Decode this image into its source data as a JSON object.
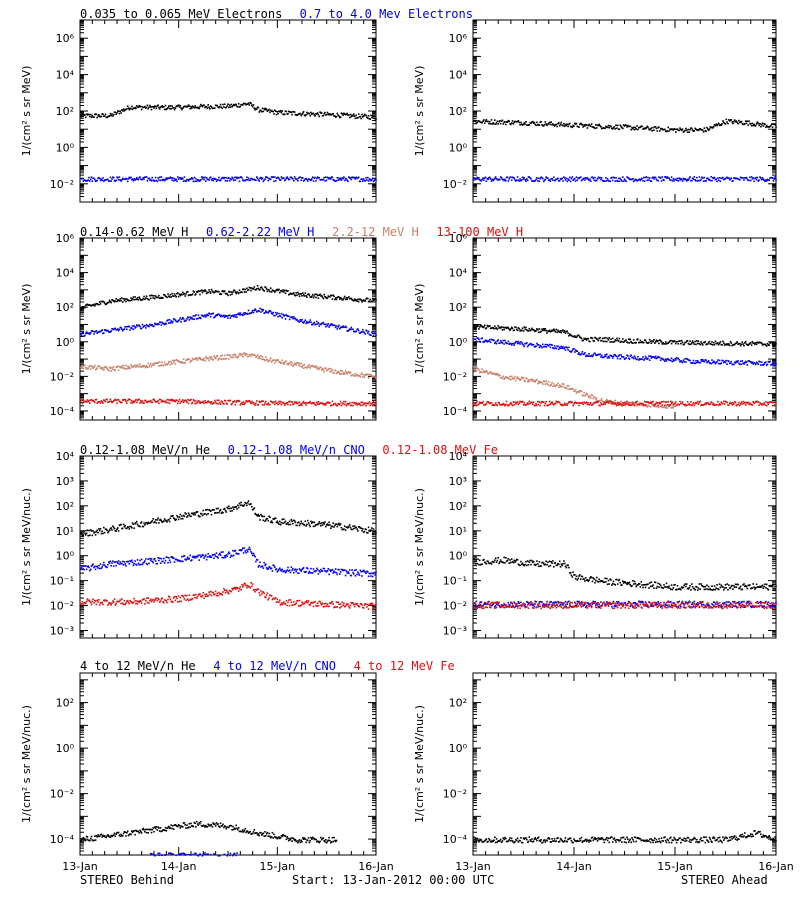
{
  "colors": {
    "black": "#000000",
    "blue": "#0000ee",
    "tan": "#c8826a",
    "red": "#dd1111"
  },
  "footer": {
    "left": "STEREO Behind",
    "center": "Start: 13-Jan-2012 00:00 UTC",
    "right": "STEREO Ahead"
  },
  "x_ticks": [
    "13-Jan",
    "14-Jan",
    "15-Jan",
    "16-Jan"
  ],
  "chart_data": [
    {
      "type": "scatter",
      "ylog": true,
      "ylim": [
        0.001,
        10000000
      ],
      "ylabel": "1/(cm² s sr MeV)",
      "ytick_exps": [
        -2,
        0,
        2,
        4,
        6
      ],
      "xlim": [
        0,
        3
      ],
      "legend": [
        {
          "name": "0.035 to 0.065 MeV Electrons",
          "color": "#000000"
        },
        {
          "name": "0.7 to 4.0 Mev Electrons",
          "color": "#0000ee"
        }
      ],
      "series": [
        {
          "name": "0.035 to 0.065 MeV Electrons",
          "color": "#000000",
          "x": [
            0,
            0.3,
            0.5,
            0.9,
            1.2,
            1.5,
            1.7,
            1.8,
            2.0,
            2.5,
            3.0
          ],
          "y": [
            60,
            60,
            180,
            170,
            190,
            200,
            280,
            130,
            90,
            70,
            50
          ]
        },
        {
          "name": "0.7 to 4.0 Mev Electrons",
          "color": "#0000ee",
          "x": [
            0,
            1.0,
            2.0,
            3.0
          ],
          "y": [
            0.02,
            0.02,
            0.02,
            0.02
          ]
        }
      ]
    },
    {
      "type": "scatter",
      "ylog": true,
      "ylim": [
        0.001,
        10000000
      ],
      "ylabel": "1/(cm² s sr MeV)",
      "ytick_exps": [
        -2,
        0,
        2,
        4,
        6
      ],
      "xlim": [
        0,
        3
      ],
      "legend": [],
      "series": [
        {
          "name": "0.035 to 0.065 MeV Electrons",
          "color": "#000000",
          "x": [
            0,
            0.5,
            1.0,
            1.5,
            2.0,
            2.3,
            2.5,
            2.7,
            3.0
          ],
          "y": [
            30,
            25,
            18,
            14,
            10,
            10,
            30,
            25,
            15
          ]
        },
        {
          "name": "0.7 to 4.0 Mev Electrons",
          "color": "#0000ee",
          "x": [
            0,
            1.0,
            2.0,
            3.0
          ],
          "y": [
            0.02,
            0.02,
            0.02,
            0.02
          ]
        }
      ]
    },
    {
      "type": "scatter",
      "ylog": true,
      "ylim": [
        3e-05,
        1000000
      ],
      "ylabel": "1/(cm² s sr MeV)",
      "ytick_exps": [
        -4,
        -2,
        0,
        2,
        4,
        6
      ],
      "xlim": [
        0,
        3
      ],
      "legend": [
        {
          "name": "0.14-0.62 MeV H",
          "color": "#000000"
        },
        {
          "name": "0.62-2.22 MeV H",
          "color": "#0000ee"
        },
        {
          "name": "2.2-12 MeV H",
          "color": "#c8826a"
        },
        {
          "name": "13-100 MeV H",
          "color": "#dd1111"
        }
      ],
      "series": [
        {
          "name": "0.14-0.62 MeV H",
          "color": "#000000",
          "x": [
            0,
            0.3,
            0.7,
            1.0,
            1.3,
            1.5,
            1.8,
            2.2,
            2.6,
            3.0
          ],
          "y": [
            100,
            250,
            400,
            600,
            900,
            700,
            1500,
            600,
            400,
            250
          ]
        },
        {
          "name": "0.62-2.22 MeV H",
          "color": "#0000ee",
          "x": [
            0,
            0.3,
            0.7,
            1.0,
            1.3,
            1.5,
            1.8,
            2.2,
            2.6,
            3.0
          ],
          "y": [
            3,
            5,
            10,
            20,
            40,
            30,
            80,
            20,
            8,
            3
          ]
        },
        {
          "name": "2.2-12 MeV H",
          "color": "#c8826a",
          "x": [
            0,
            0.3,
            0.7,
            1.0,
            1.3,
            1.5,
            1.7,
            1.9,
            2.2,
            2.6,
            3.0
          ],
          "y": [
            0.04,
            0.03,
            0.05,
            0.08,
            0.12,
            0.15,
            0.2,
            0.1,
            0.05,
            0.02,
            0.01
          ]
        },
        {
          "name": "13-100 MeV H",
          "color": "#dd1111",
          "x": [
            0,
            1.0,
            2.0,
            3.0
          ],
          "y": [
            0.0004,
            0.0004,
            0.0003,
            0.0003
          ]
        }
      ]
    },
    {
      "type": "scatter",
      "ylog": true,
      "ylim": [
        3e-05,
        1000000
      ],
      "ylabel": "1/(cm² s sr MeV)",
      "ytick_exps": [
        -4,
        -2,
        0,
        2,
        4,
        6
      ],
      "xlim": [
        0,
        3
      ],
      "legend": [],
      "series": [
        {
          "name": "0.14-0.62 MeV H",
          "color": "#000000",
          "x": [
            0,
            0.5,
            0.9,
            1.1,
            1.3,
            1.6,
            2.0,
            2.5,
            3.0
          ],
          "y": [
            8,
            6,
            4,
            1.5,
            1.5,
            1.2,
            1.0,
            0.9,
            0.8
          ]
        },
        {
          "name": "0.62-2.22 MeV H",
          "color": "#0000ee",
          "x": [
            0,
            0.5,
            0.9,
            1.1,
            1.4,
            1.8,
            2.2,
            2.6,
            3.0
          ],
          "y": [
            1.5,
            0.8,
            0.5,
            0.2,
            0.15,
            0.12,
            0.08,
            0.07,
            0.06
          ]
        },
        {
          "name": "2.2-12 MeV H",
          "color": "#c8826a",
          "x": [
            0,
            0.3,
            0.6,
            0.9,
            1.1,
            1.2,
            1.3,
            1.5,
            2.0
          ],
          "y": [
            0.03,
            0.01,
            0.006,
            0.003,
            0.001,
            0.0006,
            0.0004,
            0.0003,
            0.0002
          ]
        },
        {
          "name": "13-100 MeV H",
          "color": "#dd1111",
          "x": [
            0,
            1.0,
            2.0,
            3.0
          ],
          "y": [
            0.0003,
            0.0003,
            0.0003,
            0.0003
          ]
        }
      ]
    },
    {
      "type": "scatter",
      "ylog": true,
      "ylim": [
        0.0005,
        10000
      ],
      "ylabel": "1/(cm² s sr MeV/nuc.)",
      "ytick_exps": [
        -3,
        -2,
        -1,
        0,
        1,
        2,
        3,
        4
      ],
      "xlim": [
        0,
        3
      ],
      "legend": [
        {
          "name": "0.12-1.08 MeV/n He",
          "color": "#000000"
        },
        {
          "name": "0.12-1.08 MeV/n CNO",
          "color": "#0000ee"
        },
        {
          "name": "0.12-1.08 MeV Fe",
          "color": "#dd1111"
        }
      ],
      "series": [
        {
          "name": "0.12-1.08 MeV/n He",
          "color": "#000000",
          "x": [
            0,
            0.3,
            0.6,
            1.0,
            1.3,
            1.5,
            1.7,
            1.8,
            2.0,
            2.4,
            2.7,
            3.0
          ],
          "y": [
            8,
            12,
            20,
            40,
            60,
            80,
            150,
            40,
            25,
            20,
            15,
            10
          ]
        },
        {
          "name": "0.12-1.08 MeV/n CNO",
          "color": "#0000ee",
          "x": [
            0,
            0.3,
            0.6,
            1.0,
            1.3,
            1.5,
            1.7,
            1.8,
            2.0,
            2.5,
            3.0
          ],
          "y": [
            0.3,
            0.5,
            0.6,
            0.8,
            1.0,
            1.2,
            2.0,
            0.5,
            0.3,
            0.25,
            0.2
          ]
        },
        {
          "name": "0.12-1.08 MeV Fe",
          "color": "#dd1111",
          "x": [
            0,
            0.5,
            1.0,
            1.3,
            1.6,
            1.7,
            1.8,
            2.0,
            2.5,
            3.0
          ],
          "y": [
            0.015,
            0.015,
            0.02,
            0.03,
            0.05,
            0.08,
            0.04,
            0.015,
            0.012,
            0.01
          ]
        }
      ]
    },
    {
      "type": "scatter",
      "ylog": true,
      "ylim": [
        0.0005,
        10000
      ],
      "ylabel": "1/(cm² s sr MeV/nuc.)",
      "ytick_exps": [
        -3,
        -2,
        -1,
        0,
        1,
        2,
        3,
        4
      ],
      "xlim": [
        0,
        3
      ],
      "legend": [],
      "series": [
        {
          "name": "0.12-1.08 MeV/n He",
          "color": "#000000",
          "x": [
            0,
            0.3,
            0.6,
            0.9,
            1.0,
            1.3,
            1.6,
            2.0,
            2.5,
            3.0
          ],
          "y": [
            0.6,
            0.7,
            0.5,
            0.5,
            0.15,
            0.1,
            0.08,
            0.06,
            0.06,
            0.06
          ]
        },
        {
          "name": "0.12-1.08 MeV/n CNO",
          "color": "#0000ee",
          "x": [
            0,
            0.5,
            1.0,
            1.5,
            2.0,
            2.5,
            3.0
          ],
          "y": [
            0.012,
            0.012,
            0.012,
            0.012,
            0.012,
            0.012,
            0.012
          ]
        },
        {
          "name": "0.12-1.08 MeV Fe",
          "color": "#dd1111",
          "x": [
            0,
            0.5,
            1.0,
            1.5,
            2.0,
            2.5,
            3.0
          ],
          "y": [
            0.011,
            0.011,
            0.011,
            0.011,
            0.011,
            0.011,
            0.011
          ]
        }
      ]
    },
    {
      "type": "scatter",
      "ylog": true,
      "ylim": [
        2e-05,
        2000
      ],
      "ylabel": "1/(cm² s sr MeV/nuc.)",
      "ytick_exps": [
        -4,
        -2,
        0,
        2
      ],
      "xlim": [
        0,
        3
      ],
      "legend": [
        {
          "name": "4 to 12 MeV/n He",
          "color": "#000000"
        },
        {
          "name": "4 to 12 MeV/n CNO",
          "color": "#0000ee"
        },
        {
          "name": "4 to 12 MeV Fe",
          "color": "#dd1111"
        }
      ],
      "series": [
        {
          "name": "4 to 12 MeV/n He",
          "color": "#000000",
          "x": [
            0,
            0.5,
            0.8,
            1.0,
            1.2,
            1.5,
            1.8,
            2.2,
            2.6
          ],
          "y": [
            0.0001,
            0.0002,
            0.0003,
            0.0004,
            0.0005,
            0.0004,
            0.0002,
            0.0001,
            0.0001
          ]
        },
        {
          "name": "4 to 12 MeV/n CNO",
          "color": "#0000ee",
          "x": [
            0.7,
            0.8,
            1.0,
            1.2,
            1.4,
            1.6
          ],
          "y": [
            2e-05,
            2e-05,
            2e-05,
            2e-05,
            2e-05,
            2e-05
          ]
        }
      ]
    },
    {
      "type": "scatter",
      "ylog": true,
      "ylim": [
        2e-05,
        2000
      ],
      "ylabel": "1/(cm² s sr MeV/nuc.)",
      "ytick_exps": [
        -4,
        -2,
        0,
        2
      ],
      "xlim": [
        0,
        3
      ],
      "legend": [],
      "series": [
        {
          "name": "4 to 12 MeV/n He",
          "color": "#000000",
          "x": [
            0,
            0.5,
            1.0,
            1.5,
            2.0,
            2.5,
            2.8,
            3.0
          ],
          "y": [
            0.0001,
            0.0001,
            0.0001,
            0.0001,
            0.0001,
            0.0001,
            0.0002,
            0.0001
          ]
        }
      ]
    }
  ]
}
